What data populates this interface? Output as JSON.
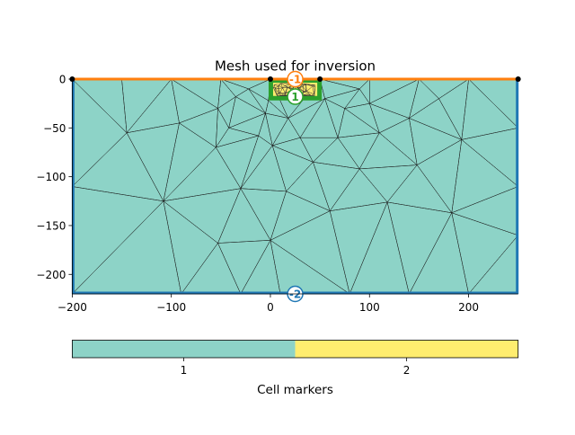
{
  "chart_data": [
    {
      "type": "mesh",
      "title": "Mesh used for inversion",
      "xlim": [
        -200,
        250
      ],
      "ylim": [
        -220,
        0
      ],
      "xticks": [
        -200,
        -100,
        0,
        100,
        200
      ],
      "xtick_labels": [
        "−200",
        "−100",
        "0",
        "100",
        "200"
      ],
      "yticks": [
        0,
        -50,
        -100,
        -150,
        -200
      ],
      "ytick_labels": [
        "0",
        "−50",
        "−100",
        "−150",
        "−200"
      ],
      "background_color": "#8dd3c7",
      "anomaly": {
        "x": [
          0,
          50
        ],
        "y": [
          -20,
          0
        ],
        "marker": 2,
        "color": "#ffed6f",
        "outline_color": "#2ca02c"
      },
      "boundary_markers": [
        {
          "label": "-1",
          "x": 25,
          "y": 0,
          "color": "#ff7f0e"
        },
        {
          "label": "1",
          "x": 25,
          "y": -18,
          "color": "#2ca02c"
        },
        {
          "label": "-2",
          "x": 25,
          "y": -220,
          "color": "#1f77b4"
        }
      ],
      "grid": false
    },
    {
      "type": "colorbar",
      "xlabel": "Cell markers",
      "categories": [
        "1",
        "2"
      ],
      "colors": [
        "#8dd3c7",
        "#ffed6f"
      ]
    }
  ]
}
